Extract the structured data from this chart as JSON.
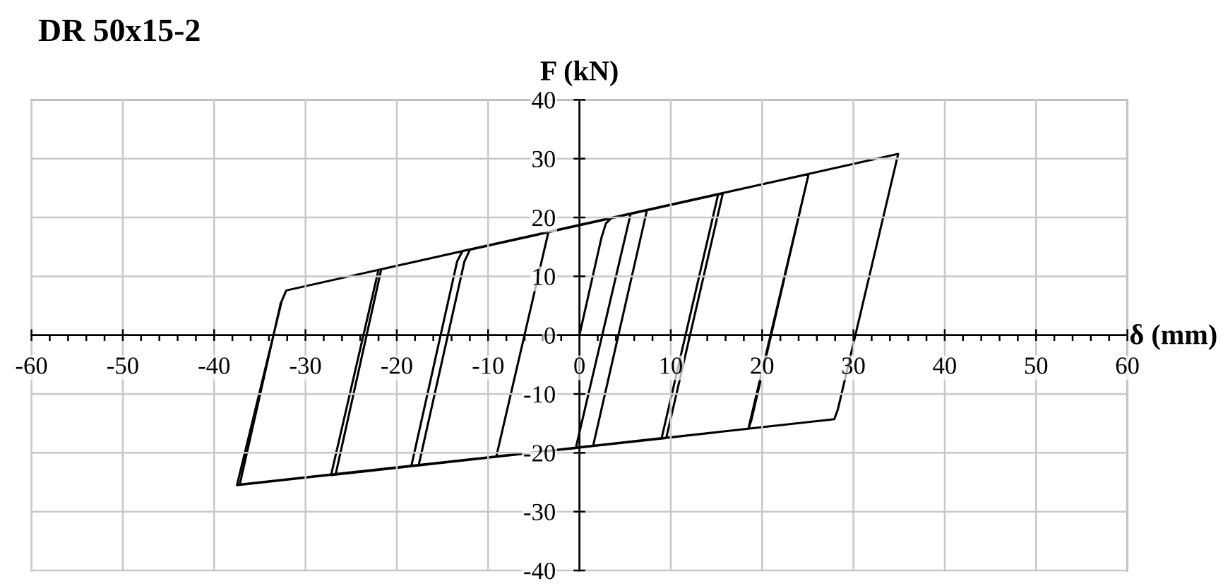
{
  "chart_data": {
    "type": "line",
    "title": "DR 50x15-2",
    "xlabel": "δ (mm)",
    "ylabel": "F (kN)",
    "xlim": [
      -60,
      60
    ],
    "ylim": [
      -40,
      40
    ],
    "xticks": [
      -60,
      {
        "value": -58,
        "label": null
      },
      {
        "value": -56,
        "label": null
      },
      {
        "value": -54,
        "label": null
      },
      {
        "value": -52,
        "label": null
      },
      -50,
      {
        "value": -48,
        "label": null
      },
      {
        "value": -46,
        "label": null
      },
      {
        "value": -44,
        "label": null
      },
      {
        "value": -42,
        "label": null
      },
      -40,
      {
        "value": -38,
        "label": null
      },
      {
        "value": -36,
        "label": null
      },
      {
        "value": -34,
        "label": null
      },
      {
        "value": -32,
        "label": null
      },
      -30,
      {
        "value": -28,
        "label": null
      },
      {
        "value": -26,
        "label": null
      },
      {
        "value": -24,
        "label": null
      },
      {
        "value": -22,
        "label": null
      },
      -20,
      {
        "value": -18,
        "label": null
      },
      {
        "value": -16,
        "label": null
      },
      {
        "value": -14,
        "label": null
      },
      {
        "value": -12,
        "label": null
      },
      -10,
      {
        "value": -8,
        "label": null
      },
      {
        "value": -6,
        "label": null
      },
      {
        "value": -4,
        "label": null
      },
      {
        "value": -2,
        "label": null
      },
      0,
      {
        "value": 2,
        "label": null
      },
      {
        "value": 4,
        "label": null
      },
      {
        "value": 6,
        "label": null
      },
      {
        "value": 8,
        "label": null
      },
      10,
      {
        "value": 12,
        "label": null
      },
      {
        "value": 14,
        "label": null
      },
      {
        "value": 16,
        "label": null
      },
      {
        "value": 18,
        "label": null
      },
      20,
      {
        "value": 22,
        "label": null
      },
      {
        "value": 24,
        "label": null
      },
      {
        "value": 26,
        "label": null
      },
      {
        "value": 28,
        "label": null
      },
      30,
      {
        "value": 32,
        "label": null
      },
      {
        "value": 34,
        "label": null
      },
      {
        "value": 36,
        "label": null
      },
      {
        "value": 38,
        "label": null
      },
      40,
      {
        "value": 42,
        "label": null
      },
      {
        "value": 44,
        "label": null
      },
      {
        "value": 46,
        "label": null
      },
      {
        "value": 48,
        "label": null
      },
      50,
      {
        "value": 52,
        "label": null
      },
      {
        "value": 54,
        "label": null
      },
      {
        "value": 56,
        "label": null
      },
      {
        "value": 58,
        "label": null
      },
      60
    ],
    "yticks": [
      -40,
      -30,
      -20,
      -10,
      0,
      10,
      20,
      30,
      40
    ],
    "grid": true,
    "series": [
      {
        "color": "#000000",
        "x": [
          0,
          2.4,
          2.9,
          3.5,
          5.6,
          -0.4,
          -9.1,
          -3.4,
          7.4,
          1.5,
          -17.6,
          -12.6,
          -12.0,
          15.7,
          9.5,
          -18.4,
          -13.4,
          -12.8,
          15.2,
          9.0,
          -26.7,
          -21.7,
          25.1,
          18.8,
          18.5,
          -27.2,
          -22.0,
          25.1,
          18.5,
          -37.5,
          -32.6,
          -32.1,
          34.9,
          28.3,
          27.9,
          -37.2,
          -32.7
        ],
        "values": [
          0,
          16.5,
          19.0,
          19.9,
          20.6,
          -19.2,
          -20.6,
          17.5,
          21.3,
          -18.8,
          -22.1,
          12.5,
          14.5,
          24.1,
          -17.5,
          -22.2,
          12.5,
          14.3,
          24.0,
          -17.5,
          -23.7,
          11.2,
          27.4,
          -14.6,
          -15.9,
          -23.8,
          11.1,
          27.4,
          -15.9,
          -25.5,
          5.8,
          7.6,
          30.8,
          -12.6,
          -14.3,
          -25.4,
          5.5
        ]
      }
    ]
  }
}
